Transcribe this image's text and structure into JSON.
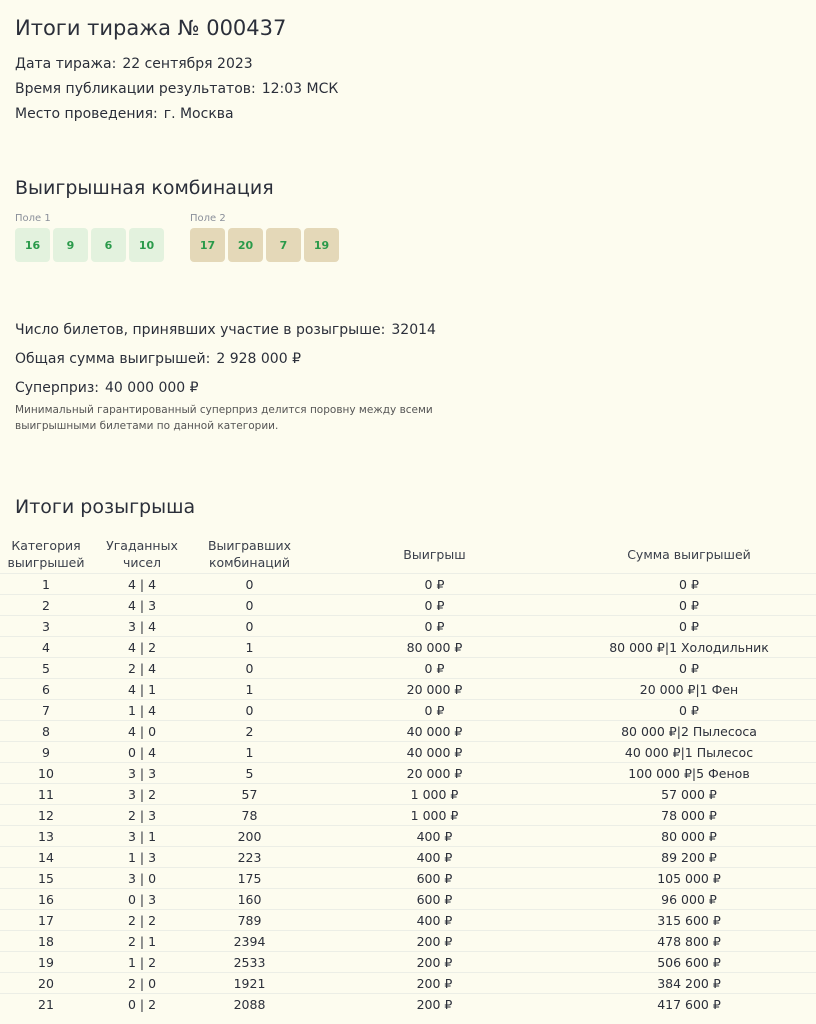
{
  "title": "Итоги тиража № 000437",
  "info": [
    {
      "label": "Дата тиража:",
      "value": "22 сентября 2023"
    },
    {
      "label": "Время публикации результатов:",
      "value": "12:03 МСК"
    },
    {
      "label": "Место проведения:",
      "value": "г. Москва"
    }
  ],
  "combo": {
    "title": "Выигрышная комбинация",
    "field1": {
      "label": "Поле 1",
      "numbers": [
        "16",
        "9",
        "6",
        "10"
      ]
    },
    "field2": {
      "label": "Поле 2",
      "numbers": [
        "17",
        "20",
        "7",
        "19"
      ]
    }
  },
  "stats": [
    {
      "label": "Число билетов, принявших участие в розыгрыше:",
      "value": "32014"
    },
    {
      "label": "Общая сумма выигрышей:",
      "value": "2 928 000 ₽"
    },
    {
      "label": "Суперприз:",
      "value": "40 000 000 ₽"
    }
  ],
  "note": "Минимальный гарантированный суперприз делится поровну между всеми выигрышными билетами по данной категории.",
  "results": {
    "title": "Итоги розыгрыша",
    "headers": [
      "Категория выигрышей",
      "Угаданных чисел",
      "Выигравших комбинаций",
      "Выигрыш",
      "Сумма выигрышей"
    ],
    "rows": [
      [
        "1",
        "4 | 4",
        "0",
        "0 ₽",
        "0 ₽"
      ],
      [
        "2",
        "4 | 3",
        "0",
        "0 ₽",
        "0 ₽"
      ],
      [
        "3",
        "3 | 4",
        "0",
        "0 ₽",
        "0 ₽"
      ],
      [
        "4",
        "4 | 2",
        "1",
        "80 000 ₽",
        "80 000 ₽|1 Холодильник"
      ],
      [
        "5",
        "2 | 4",
        "0",
        "0 ₽",
        "0 ₽"
      ],
      [
        "6",
        "4 | 1",
        "1",
        "20 000 ₽",
        "20 000 ₽|1 Фен"
      ],
      [
        "7",
        "1 | 4",
        "0",
        "0 ₽",
        "0 ₽"
      ],
      [
        "8",
        "4 | 0",
        "2",
        "40 000 ₽",
        "80 000 ₽|2 Пылесоса"
      ],
      [
        "9",
        "0 | 4",
        "1",
        "40 000 ₽",
        "40 000 ₽|1 Пылесос"
      ],
      [
        "10",
        "3 | 3",
        "5",
        "20 000 ₽",
        "100 000 ₽|5 Фенов"
      ],
      [
        "11",
        "3 | 2",
        "57",
        "1 000 ₽",
        "57 000 ₽"
      ],
      [
        "12",
        "2 | 3",
        "78",
        "1 000 ₽",
        "78 000 ₽"
      ],
      [
        "13",
        "3 | 1",
        "200",
        "400 ₽",
        "80 000 ₽"
      ],
      [
        "14",
        "1 | 3",
        "223",
        "400 ₽",
        "89 200 ₽"
      ],
      [
        "15",
        "3 | 0",
        "175",
        "600 ₽",
        "105 000 ₽"
      ],
      [
        "16",
        "0 | 3",
        "160",
        "600 ₽",
        "96 000 ₽"
      ],
      [
        "17",
        "2 | 2",
        "789",
        "400 ₽",
        "315 600 ₽"
      ],
      [
        "18",
        "2 | 1",
        "2394",
        "200 ₽",
        "478 800 ₽"
      ],
      [
        "19",
        "1 | 2",
        "2533",
        "200 ₽",
        "506 600 ₽"
      ],
      [
        "20",
        "2 | 0",
        "1921",
        "200 ₽",
        "384 200 ₽"
      ],
      [
        "21",
        "0 | 2",
        "2088",
        "200 ₽",
        "417 600 ₽"
      ]
    ]
  }
}
